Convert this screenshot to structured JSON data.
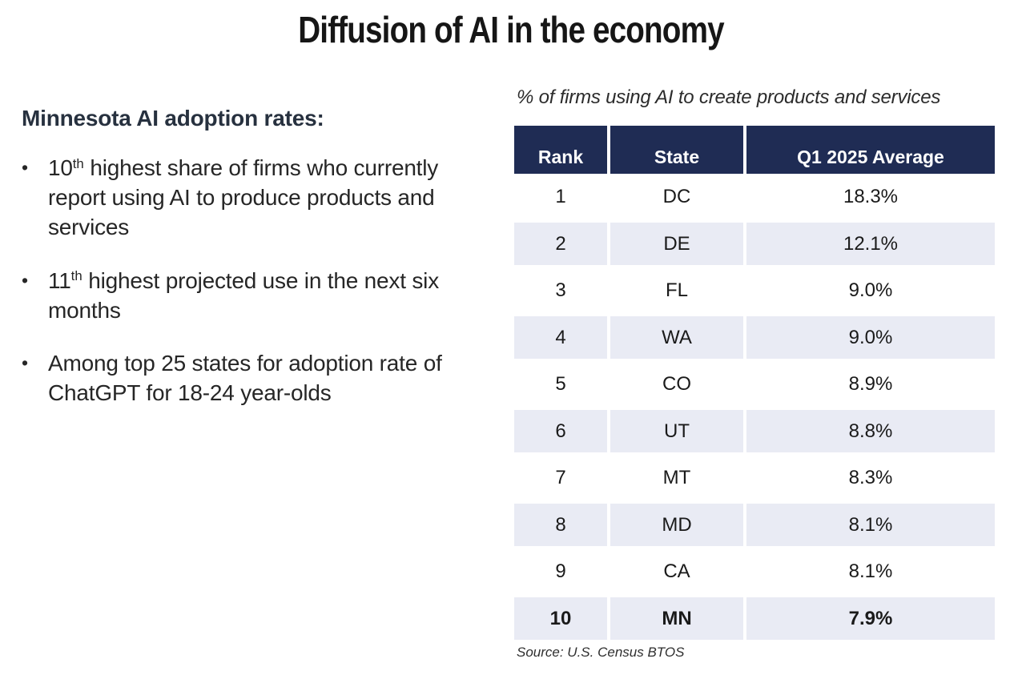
{
  "title": "Diffusion of AI in the economy",
  "left": {
    "heading": "Minnesota AI adoption rates:",
    "bullet_char": "•",
    "bullets": [
      {
        "prefix": "10",
        "sup": "th",
        "rest": " highest share of firms who currently report using AI to produce products and services"
      },
      {
        "prefix": "11",
        "sup": "th",
        "rest": " highest projected use in the next six months"
      },
      {
        "prefix": "",
        "sup": "",
        "rest": "Among top 25 states for adoption rate of ChatGPT for 18-24 year-olds"
      }
    ]
  },
  "table": {
    "caption": "% of firms using AI to create products and services",
    "columns": [
      "Rank",
      "State",
      "Q1 2025 Average"
    ],
    "rows": [
      {
        "rank": "1",
        "state": "DC",
        "value": "18.3%"
      },
      {
        "rank": "2",
        "state": "DE",
        "value": "12.1%"
      },
      {
        "rank": "3",
        "state": "FL",
        "value": "9.0%"
      },
      {
        "rank": "4",
        "state": "WA",
        "value": "9.0%"
      },
      {
        "rank": "5",
        "state": "CO",
        "value": "8.9%"
      },
      {
        "rank": "6",
        "state": "UT",
        "value": "8.8%"
      },
      {
        "rank": "7",
        "state": "MT",
        "value": "8.3%"
      },
      {
        "rank": "8",
        "state": "MD",
        "value": "8.1%"
      },
      {
        "rank": "9",
        "state": "CA",
        "value": "8.1%"
      },
      {
        "rank": "10",
        "state": "MN",
        "value": "7.9%"
      }
    ],
    "source": "Source: U.S. Census BTOS"
  },
  "colors": {
    "header_bg": "#1F2C54",
    "row_alt_bg": "#E9EBF4",
    "heading_text": "#27313F",
    "body_text": "#262626"
  },
  "chart_data": {
    "type": "table",
    "title": "% of firms using AI to create products and services",
    "categories": [
      "DC",
      "DE",
      "FL",
      "WA",
      "CO",
      "UT",
      "MT",
      "MD",
      "CA",
      "MN"
    ],
    "values": [
      18.3,
      12.1,
      9.0,
      9.0,
      8.9,
      8.8,
      8.3,
      8.1,
      8.1,
      7.9
    ],
    "value_unit": "%",
    "series_label": "Q1 2025 Average"
  }
}
